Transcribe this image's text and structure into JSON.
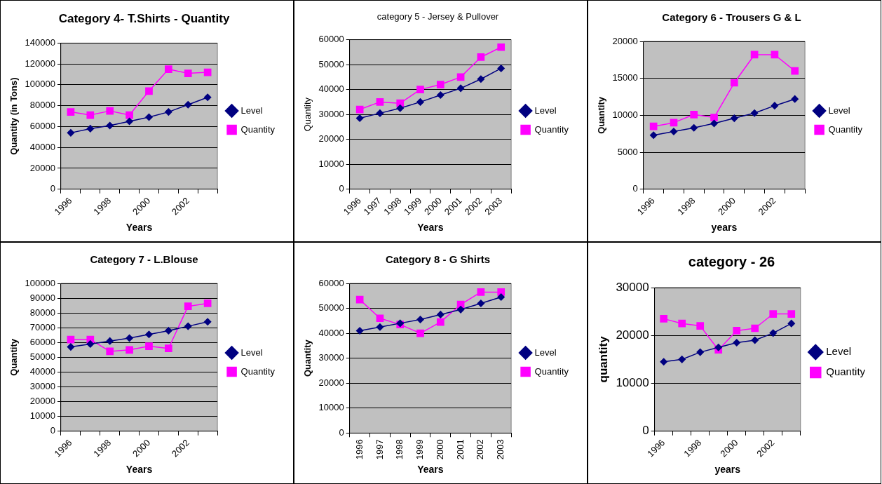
{
  "chart_data": [
    {
      "type": "line",
      "title": "Category 4- T.Shirts - Quantity",
      "xlabel": "Years",
      "ylabel": "Quantity (in Tons)",
      "categories": [
        "1996",
        null,
        "1998",
        null,
        "2000",
        null,
        "2002",
        null
      ],
      "ylim": [
        0,
        140000
      ],
      "yticks": [
        0,
        20000,
        40000,
        60000,
        80000,
        100000,
        120000,
        140000
      ],
      "grid": "y",
      "legend": "right",
      "series": [
        {
          "name": "Level",
          "color": "#000080",
          "marker": "diamond",
          "values": [
            54000,
            58000,
            61000,
            65000,
            69000,
            74000,
            81000,
            88000
          ]
        },
        {
          "name": "Quantity",
          "color": "#ff00ff",
          "marker": "square",
          "values": [
            74000,
            71000,
            75000,
            71000,
            94000,
            115000,
            111000,
            112000
          ]
        }
      ]
    },
    {
      "type": "line",
      "title": "category 5 - Jersey & Pullover",
      "xlabel": "Years",
      "ylabel": "Quantity",
      "categories": [
        "1996",
        "1997",
        "1998",
        "1999",
        "2000",
        "2001",
        "2002",
        "2003"
      ],
      "ylim": [
        0,
        60000
      ],
      "yticks": [
        0,
        10000,
        20000,
        30000,
        40000,
        50000,
        60000
      ],
      "grid": "y",
      "legend": "right",
      "series": [
        {
          "name": "Level",
          "color": "#000080",
          "marker": "diamond",
          "values": [
            28500,
            30500,
            32500,
            35000,
            37800,
            40500,
            44200,
            48500
          ]
        },
        {
          "name": "Quantity",
          "color": "#ff00ff",
          "marker": "square",
          "values": [
            32000,
            35000,
            34500,
            40000,
            42000,
            45000,
            53000,
            57000
          ]
        }
      ]
    },
    {
      "type": "line",
      "title": "Category 6 - Trousers G & L",
      "xlabel": "years",
      "ylabel": "Quantity",
      "categories": [
        "1996",
        null,
        "1998",
        null,
        "2000",
        null,
        "2002",
        null
      ],
      "ylim": [
        0,
        20000
      ],
      "yticks": [
        0,
        5000,
        10000,
        15000,
        20000
      ],
      "grid": "y",
      "legend": "right",
      "series": [
        {
          "name": "Level",
          "color": "#000080",
          "marker": "diamond",
          "values": [
            7300,
            7800,
            8300,
            8900,
            9600,
            10300,
            11300,
            12200
          ]
        },
        {
          "name": "Quantity",
          "color": "#ff00ff",
          "marker": "square",
          "values": [
            8500,
            9000,
            10100,
            9700,
            14400,
            18200,
            18200,
            16000
          ]
        }
      ]
    },
    {
      "type": "line",
      "title": "Category 7 - L.Blouse",
      "xlabel": "Years",
      "ylabel": "Quantity",
      "categories": [
        "1996",
        null,
        "1998",
        null,
        "2000",
        null,
        "2002",
        null
      ],
      "ylim": [
        0,
        100000
      ],
      "yticks": [
        0,
        10000,
        20000,
        30000,
        40000,
        50000,
        60000,
        70000,
        80000,
        90000,
        100000
      ],
      "grid": "y",
      "legend": "right",
      "series": [
        {
          "name": "Level",
          "color": "#000080",
          "marker": "diamond",
          "values": [
            57000,
            59000,
            61000,
            63000,
            65500,
            68000,
            71000,
            74000
          ]
        },
        {
          "name": "Quantity",
          "color": "#ff00ff",
          "marker": "square",
          "values": [
            62000,
            62000,
            54000,
            55000,
            57500,
            56000,
            84500,
            86500
          ]
        }
      ]
    },
    {
      "type": "line",
      "title": "Category 8 - G Shirts",
      "xlabel": "Years",
      "ylabel": "Quantity",
      "categories": [
        "1996",
        "1997",
        "1998",
        "1999",
        "2000",
        "2001",
        "2002",
        "2003"
      ],
      "ylim": [
        0,
        60000
      ],
      "yticks": [
        0,
        10000,
        20000,
        30000,
        40000,
        50000,
        60000
      ],
      "grid": "y",
      "legend": "right",
      "series": [
        {
          "name": "Level",
          "color": "#000080",
          "marker": "diamond",
          "values": [
            41000,
            42500,
            44000,
            45500,
            47500,
            49500,
            52000,
            54500
          ]
        },
        {
          "name": "Quantity",
          "color": "#ff00ff",
          "marker": "square",
          "values": [
            53500,
            46000,
            43500,
            40000,
            44500,
            51500,
            56500,
            56500
          ]
        }
      ]
    },
    {
      "type": "line",
      "title": "category - 26",
      "xlabel": "years",
      "ylabel": "quantity",
      "categories": [
        "1996",
        null,
        "1998",
        null,
        "2000",
        null,
        "2002",
        null
      ],
      "ylim": [
        0,
        30000
      ],
      "yticks": [
        0,
        10000,
        20000,
        30000
      ],
      "grid": "y",
      "legend": "right",
      "series": [
        {
          "name": "Level",
          "color": "#000080",
          "marker": "diamond",
          "values": [
            14500,
            15000,
            16500,
            17500,
            18500,
            19000,
            20500,
            22500
          ]
        },
        {
          "name": "Quantity",
          "color": "#ff00ff",
          "marker": "square",
          "values": [
            23500,
            22500,
            22000,
            17000,
            21000,
            21500,
            24500,
            24500
          ]
        }
      ]
    }
  ]
}
